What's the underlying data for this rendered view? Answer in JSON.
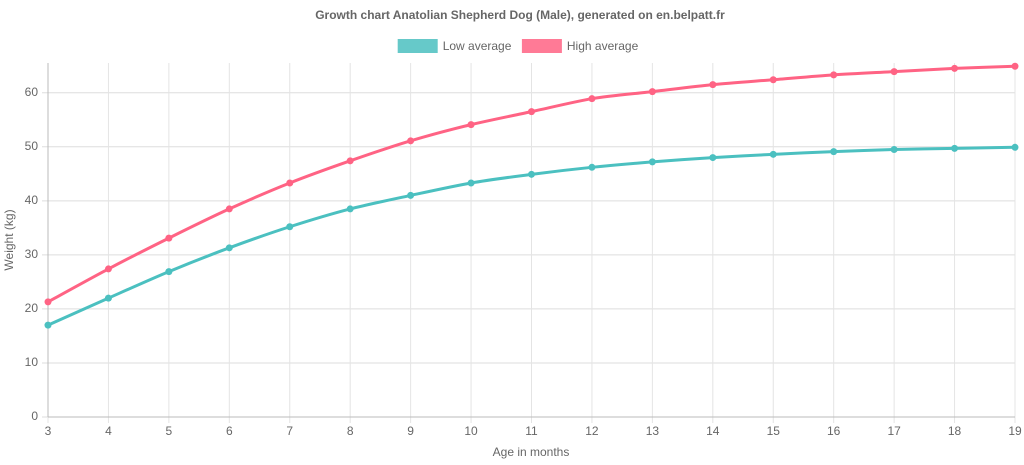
{
  "chart_data": {
    "type": "line",
    "title": "Growth chart Anatolian Shepherd Dog (Male), generated on en.belpatt.fr",
    "x_label": "Age in months",
    "y_label": "Weight (kg)",
    "x": [
      3,
      4,
      5,
      6,
      7,
      8,
      9,
      10,
      11,
      12,
      13,
      14,
      15,
      16,
      17,
      18,
      19
    ],
    "series": [
      {
        "name": "Low average",
        "color": "#4bc0c0",
        "values": [
          17,
          22,
          26.9,
          31.3,
          35.2,
          38.5,
          41,
          43.3,
          44.9,
          46.2,
          47.2,
          48,
          48.6,
          49.1,
          49.5,
          49.7,
          49.9
        ]
      },
      {
        "name": "High average",
        "color": "#ff6384",
        "values": [
          21.3,
          27.4,
          33.1,
          38.5,
          43.3,
          47.4,
          51.1,
          54.1,
          56.5,
          58.9,
          60.2,
          61.5,
          62.4,
          63.3,
          63.9,
          64.5,
          64.9
        ]
      }
    ],
    "xlim": [
      3,
      19
    ],
    "xticks": [
      3,
      4,
      5,
      6,
      7,
      8,
      9,
      10,
      11,
      12,
      13,
      14,
      15,
      16,
      17,
      18,
      19
    ],
    "ylim": [
      0,
      65.5
    ],
    "yticks": [
      0,
      10,
      20,
      30,
      40,
      50,
      60
    ],
    "grid": true,
    "legend": "top"
  }
}
